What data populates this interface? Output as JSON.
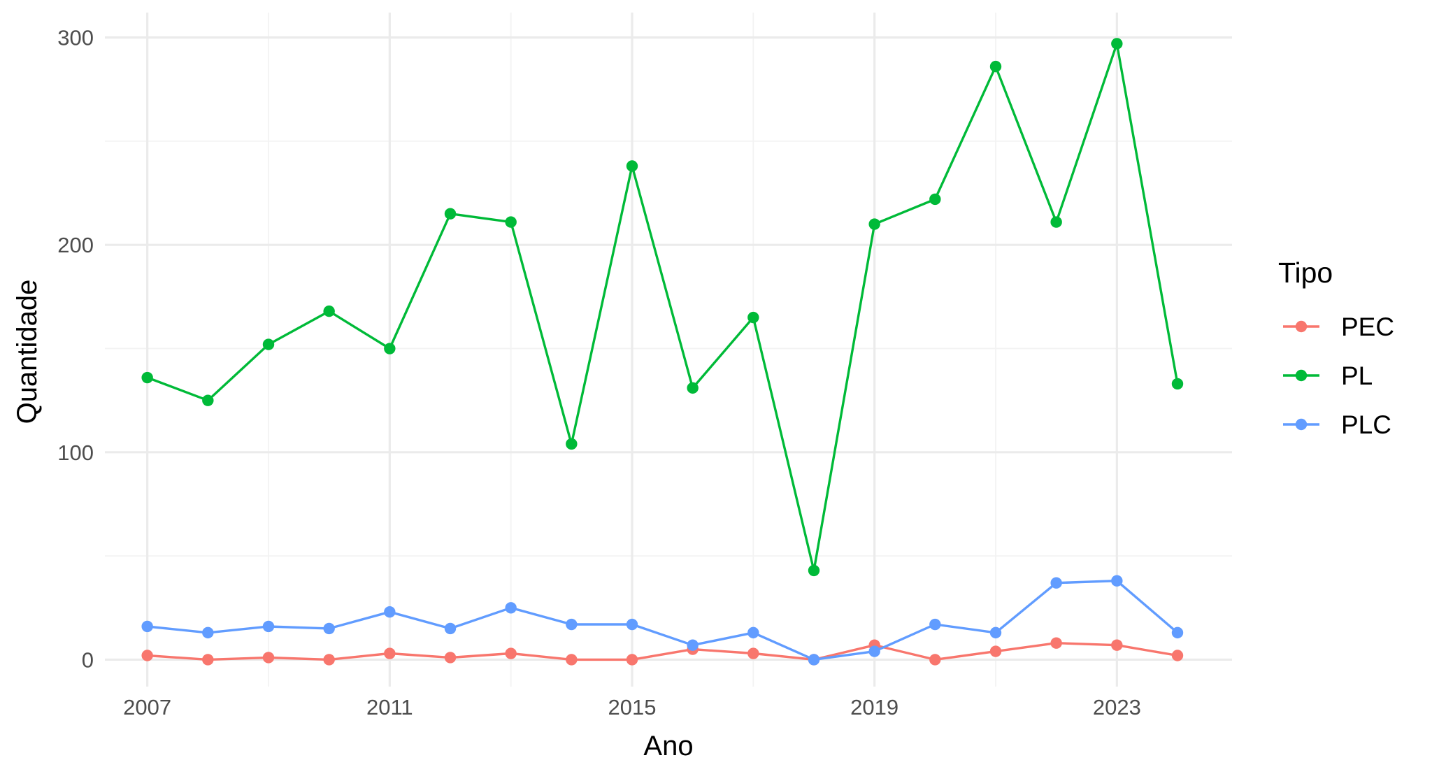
{
  "chart_data": {
    "type": "line",
    "xlabel": "Ano",
    "ylabel": "Quantidade",
    "x": [
      2007,
      2008,
      2009,
      2010,
      2011,
      2012,
      2013,
      2014,
      2015,
      2016,
      2017,
      2018,
      2019,
      2020,
      2021,
      2022,
      2023,
      2024
    ],
    "xlim": [
      2006.3,
      2024.9
    ],
    "ylim": [
      -13,
      312
    ],
    "x_ticks": [
      2007,
      2011,
      2015,
      2019,
      2023
    ],
    "y_ticks": [
      0,
      100,
      200,
      300
    ],
    "grid": true,
    "legend": {
      "title": "Tipo",
      "position": "right"
    },
    "series": [
      {
        "name": "PEC",
        "color": "#F8766D",
        "values": [
          2,
          0,
          1,
          0,
          3,
          1,
          3,
          0,
          0,
          5,
          3,
          0,
          7,
          0,
          4,
          8,
          7,
          2
        ]
      },
      {
        "name": "PL",
        "color": "#00BA38",
        "values": [
          136,
          125,
          152,
          168,
          150,
          215,
          211,
          104,
          238,
          131,
          165,
          43,
          210,
          222,
          286,
          211,
          297,
          133
        ]
      },
      {
        "name": "PLC",
        "color": "#619CFF",
        "values": [
          16,
          13,
          16,
          15,
          23,
          15,
          25,
          17,
          17,
          7,
          13,
          0,
          4,
          17,
          13,
          37,
          38,
          13
        ]
      }
    ]
  }
}
